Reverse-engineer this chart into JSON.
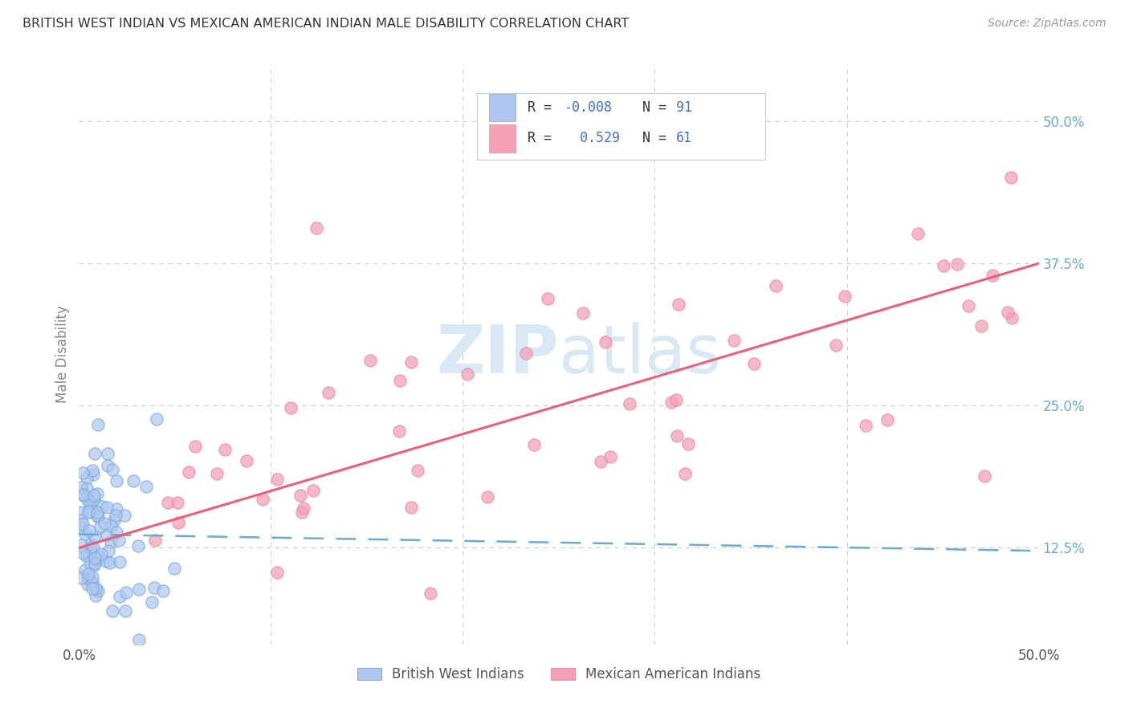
{
  "title": "BRITISH WEST INDIAN VS MEXICAN AMERICAN INDIAN MALE DISABILITY CORRELATION CHART",
  "source": "Source: ZipAtlas.com",
  "ylabel": "Male Disability",
  "xlim": [
    0.0,
    0.5
  ],
  "ylim": [
    0.04,
    0.55
  ],
  "yticks": [
    0.125,
    0.25,
    0.375,
    0.5
  ],
  "ytick_labels": [
    "12.5%",
    "25.0%",
    "37.5%",
    "50.0%"
  ],
  "xtick_labels": [
    "0.0%",
    "",
    "",
    "",
    "",
    "50.0%"
  ],
  "legend_entries": [
    {
      "label": "British West Indians",
      "color": "#aec6f0",
      "R": "-0.008",
      "N": "91"
    },
    {
      "label": "Mexican American Indians",
      "color": "#f5a0b5",
      "R": "0.529",
      "N": "61"
    }
  ],
  "blue_line_color": "#6aaad4",
  "pink_line_color": "#e8607a",
  "scatter_blue_color": "#aec6f0",
  "scatter_pink_color": "#f5a0b5",
  "scatter_blue_edge": "#7aaad8",
  "scatter_pink_edge": "#e890a8",
  "background_color": "#ffffff",
  "grid_color": "#cccccc",
  "title_color": "#333333",
  "axis_label_color": "#888888",
  "tick_label_color_right": "#6aaad4",
  "watermark_color": "#d8e8f5",
  "legend_R_color": "#4472c4",
  "legend_N_color": "#4472c4"
}
